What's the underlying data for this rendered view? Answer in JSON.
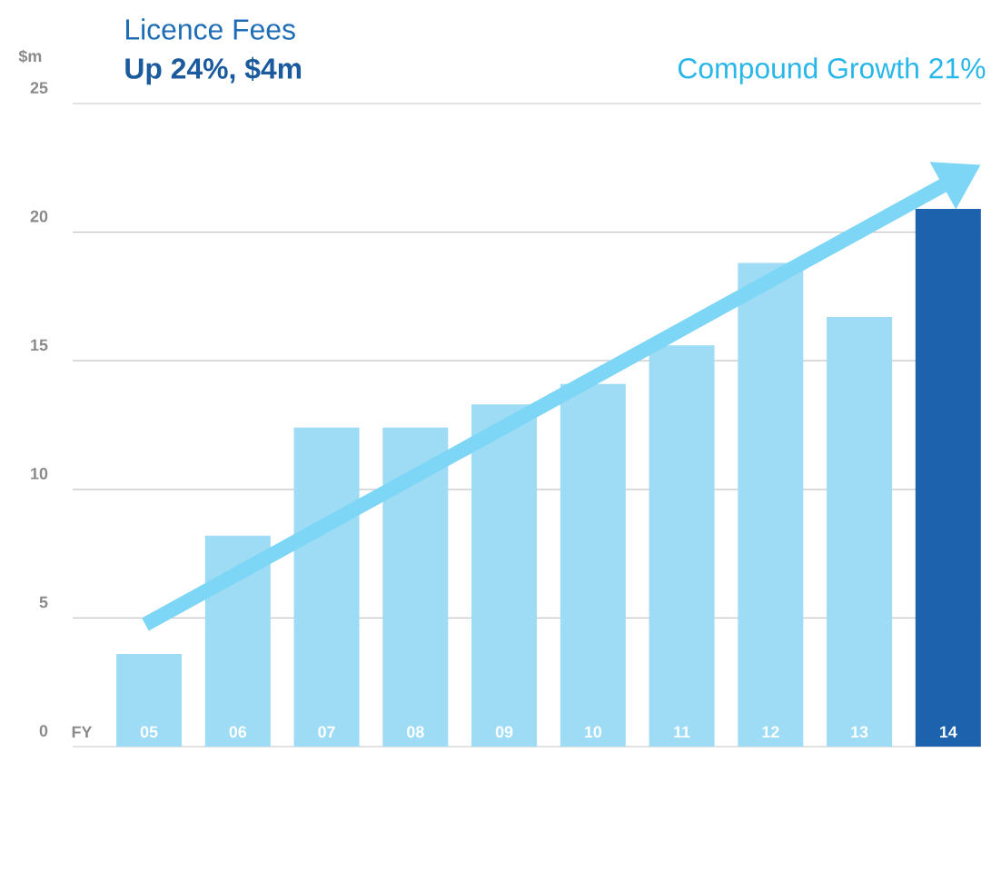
{
  "chart_data": {
    "type": "bar",
    "title": "Licence Fees",
    "subtitle": "Up 24%, $4m",
    "ylabel": "$m",
    "xlabel": "FY",
    "annotations": [
      "Compound Growth 21%"
    ],
    "categories": [
      "05",
      "06",
      "07",
      "08",
      "09",
      "10",
      "11",
      "12",
      "13",
      "14"
    ],
    "values": [
      3.6,
      8.2,
      12.4,
      12.4,
      13.3,
      14.1,
      15.6,
      18.8,
      16.7,
      20.9
    ],
    "colors": [
      "#9ddcf4",
      "#9ddcf4",
      "#9ddcf4",
      "#9ddcf4",
      "#9ddcf4",
      "#9ddcf4",
      "#9ddcf4",
      "#9ddcf4",
      "#9ddcf4",
      "#1c62ad"
    ],
    "ylim": [
      0,
      25
    ],
    "yticks": [
      0,
      5,
      10,
      15,
      20,
      25
    ],
    "grid": "y"
  }
}
